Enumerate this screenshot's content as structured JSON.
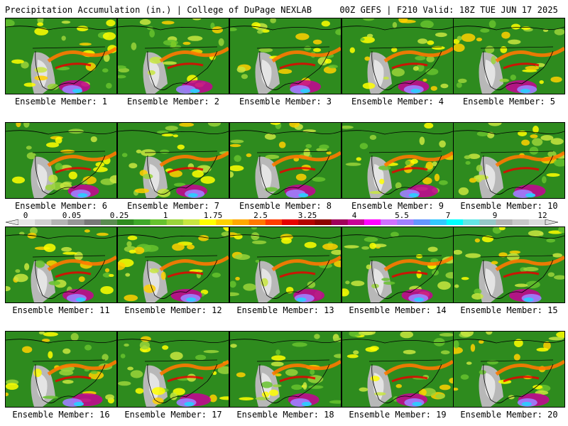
{
  "header": {
    "left": "Precipitation Accumulation (in.) | College of DuPage NEXLAB",
    "right": "00Z GEFS | F210 Valid: 18Z TUE JUN 17 2025"
  },
  "panels": [
    {
      "label": "Ensemble Member: 1"
    },
    {
      "label": "Ensemble Member: 2"
    },
    {
      "label": "Ensemble Member: 3"
    },
    {
      "label": "Ensemble Member: 4"
    },
    {
      "label": "Ensemble Member: 5"
    },
    {
      "label": "Ensemble Member: 6"
    },
    {
      "label": "Ensemble Member: 7"
    },
    {
      "label": "Ensemble Member: 8"
    },
    {
      "label": "Ensemble Member: 9"
    },
    {
      "label": "Ensemble Member: 10"
    },
    {
      "label": "Ensemble Member: 11"
    },
    {
      "label": "Ensemble Member: 12"
    },
    {
      "label": "Ensemble Member: 13"
    },
    {
      "label": "Ensemble Member: 14"
    },
    {
      "label": "Ensemble Member: 15"
    },
    {
      "label": "Ensemble Member: 16"
    },
    {
      "label": "Ensemble Member: 17"
    },
    {
      "label": "Ensemble Member: 18"
    },
    {
      "label": "Ensemble Member: 19"
    },
    {
      "label": "Ensemble Member: 20"
    }
  ],
  "colorbar": {
    "tick_labels": [
      "0",
      "0.05",
      "0.25",
      "1",
      "1.75",
      "2.5",
      "3.25",
      "4",
      "5.5",
      "7",
      "9",
      "12"
    ],
    "colors": [
      "#e6e6e6",
      "#d0d0d0",
      "#b4b4b4",
      "#969696",
      "#787878",
      "#5a8c50",
      "#2e8b1e",
      "#3fa82a",
      "#66c22e",
      "#9ad43a",
      "#c8e640",
      "#ffff00",
      "#ffd000",
      "#ffa800",
      "#ff7800",
      "#ff3c00",
      "#e60000",
      "#b40000",
      "#8c0000",
      "#a0005a",
      "#c80096",
      "#ff00ff",
      "#d070ff",
      "#a080ff",
      "#6496ff",
      "#32c8ff",
      "#00ffff",
      "#64e6e6",
      "#96c8c8",
      "#b4b4b4",
      "#c8c8c8",
      "#dcdcdc"
    ]
  }
}
